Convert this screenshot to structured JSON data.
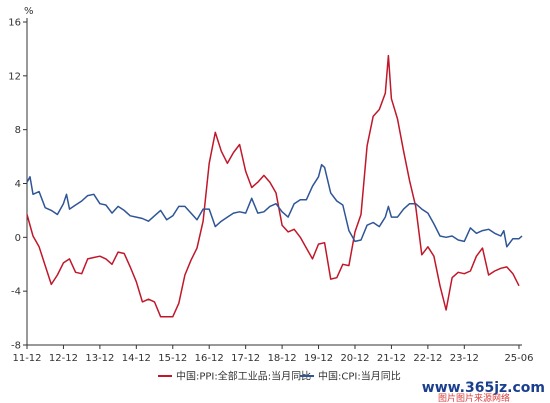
{
  "chart_data": {
    "type": "line",
    "y_unit": "%",
    "ylim": [
      -8,
      16
    ],
    "y_ticks": [
      "16",
      "12",
      "8",
      "4",
      "0",
      "-4",
      "-8"
    ],
    "xlim": [
      2011.917,
      2025.5
    ],
    "x_ticks": [
      {
        "label": "11-12",
        "t": 2011.917
      },
      {
        "label": "12-12",
        "t": 2012.917
      },
      {
        "label": "13-12",
        "t": 2013.917
      },
      {
        "label": "14-12",
        "t": 2014.917
      },
      {
        "label": "15-12",
        "t": 2015.917
      },
      {
        "label": "16-12",
        "t": 2016.917
      },
      {
        "label": "17-12",
        "t": 2017.917
      },
      {
        "label": "18-12",
        "t": 2018.917
      },
      {
        "label": "19-12",
        "t": 2019.917
      },
      {
        "label": "20-12",
        "t": 2020.917
      },
      {
        "label": "21-12",
        "t": 2021.917
      },
      {
        "label": "22-12",
        "t": 2022.917
      },
      {
        "label": "23-12",
        "t": 2023.917
      },
      {
        "label": "25-06",
        "t": 2025.417
      }
    ],
    "grid": false,
    "legend_position": "bottom",
    "series": [
      {
        "name": "中国:PPI:全部工业品:当月同比",
        "color": "#c0182a",
        "points": [
          [
            2011.917,
            1.7
          ],
          [
            2012.083,
            0.1
          ],
          [
            2012.25,
            -0.7
          ],
          [
            2012.417,
            -2.1
          ],
          [
            2012.583,
            -3.5
          ],
          [
            2012.75,
            -2.8
          ],
          [
            2012.917,
            -1.9
          ],
          [
            2013.083,
            -1.6
          ],
          [
            2013.25,
            -2.6
          ],
          [
            2013.417,
            -2.7
          ],
          [
            2013.583,
            -1.6
          ],
          [
            2013.75,
            -1.5
          ],
          [
            2013.917,
            -1.4
          ],
          [
            2014.083,
            -1.6
          ],
          [
            2014.25,
            -2.0
          ],
          [
            2014.417,
            -1.1
          ],
          [
            2014.583,
            -1.2
          ],
          [
            2014.75,
            -2.2
          ],
          [
            2014.917,
            -3.3
          ],
          [
            2015.083,
            -4.8
          ],
          [
            2015.25,
            -4.6
          ],
          [
            2015.417,
            -4.8
          ],
          [
            2015.583,
            -5.9
          ],
          [
            2015.75,
            -5.9
          ],
          [
            2015.917,
            -5.9
          ],
          [
            2016.083,
            -4.9
          ],
          [
            2016.25,
            -2.8
          ],
          [
            2016.417,
            -1.7
          ],
          [
            2016.583,
            -0.8
          ],
          [
            2016.75,
            1.2
          ],
          [
            2016.917,
            5.5
          ],
          [
            2017.083,
            7.8
          ],
          [
            2017.25,
            6.4
          ],
          [
            2017.417,
            5.5
          ],
          [
            2017.583,
            6.3
          ],
          [
            2017.75,
            6.9
          ],
          [
            2017.917,
            4.9
          ],
          [
            2018.083,
            3.7
          ],
          [
            2018.25,
            4.1
          ],
          [
            2018.417,
            4.6
          ],
          [
            2018.583,
            4.1
          ],
          [
            2018.75,
            3.3
          ],
          [
            2018.917,
            0.9
          ],
          [
            2019.083,
            0.4
          ],
          [
            2019.25,
            0.6
          ],
          [
            2019.417,
            0.0
          ],
          [
            2019.583,
            -0.8
          ],
          [
            2019.75,
            -1.6
          ],
          [
            2019.917,
            -0.5
          ],
          [
            2020.083,
            -0.4
          ],
          [
            2020.25,
            -3.1
          ],
          [
            2020.417,
            -3.0
          ],
          [
            2020.583,
            -2.0
          ],
          [
            2020.75,
            -2.1
          ],
          [
            2020.917,
            0.4
          ],
          [
            2021.083,
            1.7
          ],
          [
            2021.25,
            6.8
          ],
          [
            2021.417,
            9.0
          ],
          [
            2021.583,
            9.5
          ],
          [
            2021.75,
            10.7
          ],
          [
            2021.833,
            13.5
          ],
          [
            2021.917,
            10.3
          ],
          [
            2022.083,
            8.8
          ],
          [
            2022.25,
            6.4
          ],
          [
            2022.417,
            4.2
          ],
          [
            2022.583,
            2.3
          ],
          [
            2022.75,
            -1.3
          ],
          [
            2022.917,
            -0.7
          ],
          [
            2023.083,
            -1.4
          ],
          [
            2023.25,
            -3.6
          ],
          [
            2023.417,
            -5.4
          ],
          [
            2023.583,
            -3.0
          ],
          [
            2023.75,
            -2.6
          ],
          [
            2023.917,
            -2.7
          ],
          [
            2024.083,
            -2.5
          ],
          [
            2024.25,
            -1.4
          ],
          [
            2024.417,
            -0.8
          ],
          [
            2024.583,
            -2.8
          ],
          [
            2024.75,
            -2.5
          ],
          [
            2024.917,
            -2.3
          ],
          [
            2025.083,
            -2.2
          ],
          [
            2025.25,
            -2.7
          ],
          [
            2025.417,
            -3.6
          ]
        ]
      },
      {
        "name": "中国:CPI:当月同比",
        "color": "#2f5597",
        "points": [
          [
            2011.917,
            4.1
          ],
          [
            2012.0,
            4.5
          ],
          [
            2012.083,
            3.2
          ],
          [
            2012.25,
            3.4
          ],
          [
            2012.417,
            2.2
          ],
          [
            2012.583,
            2.0
          ],
          [
            2012.75,
            1.7
          ],
          [
            2012.917,
            2.5
          ],
          [
            2013.0,
            3.2
          ],
          [
            2013.083,
            2.1
          ],
          [
            2013.25,
            2.4
          ],
          [
            2013.417,
            2.7
          ],
          [
            2013.583,
            3.1
          ],
          [
            2013.75,
            3.2
          ],
          [
            2013.917,
            2.5
          ],
          [
            2014.083,
            2.4
          ],
          [
            2014.25,
            1.8
          ],
          [
            2014.417,
            2.3
          ],
          [
            2014.583,
            2.0
          ],
          [
            2014.75,
            1.6
          ],
          [
            2014.917,
            1.5
          ],
          [
            2015.083,
            1.4
          ],
          [
            2015.25,
            1.2
          ],
          [
            2015.417,
            1.6
          ],
          [
            2015.583,
            2.0
          ],
          [
            2015.75,
            1.3
          ],
          [
            2015.917,
            1.6
          ],
          [
            2016.083,
            2.3
          ],
          [
            2016.25,
            2.3
          ],
          [
            2016.417,
            1.8
          ],
          [
            2016.583,
            1.3
          ],
          [
            2016.75,
            2.1
          ],
          [
            2016.917,
            2.1
          ],
          [
            2017.083,
            0.8
          ],
          [
            2017.25,
            1.2
          ],
          [
            2017.417,
            1.5
          ],
          [
            2017.583,
            1.8
          ],
          [
            2017.75,
            1.9
          ],
          [
            2017.917,
            1.8
          ],
          [
            2018.083,
            2.9
          ],
          [
            2018.25,
            1.8
          ],
          [
            2018.417,
            1.9
          ],
          [
            2018.583,
            2.3
          ],
          [
            2018.75,
            2.5
          ],
          [
            2018.917,
            1.9
          ],
          [
            2019.083,
            1.5
          ],
          [
            2019.25,
            2.5
          ],
          [
            2019.417,
            2.8
          ],
          [
            2019.583,
            2.8
          ],
          [
            2019.75,
            3.8
          ],
          [
            2019.917,
            4.5
          ],
          [
            2020.0,
            5.4
          ],
          [
            2020.083,
            5.2
          ],
          [
            2020.25,
            3.3
          ],
          [
            2020.417,
            2.7
          ],
          [
            2020.583,
            2.4
          ],
          [
            2020.75,
            0.5
          ],
          [
            2020.917,
            -0.3
          ],
          [
            2021.083,
            -0.2
          ],
          [
            2021.25,
            0.9
          ],
          [
            2021.417,
            1.1
          ],
          [
            2021.583,
            0.8
          ],
          [
            2021.75,
            1.5
          ],
          [
            2021.833,
            2.3
          ],
          [
            2021.917,
            1.5
          ],
          [
            2022.083,
            1.5
          ],
          [
            2022.25,
            2.1
          ],
          [
            2022.417,
            2.5
          ],
          [
            2022.583,
            2.5
          ],
          [
            2022.75,
            2.1
          ],
          [
            2022.917,
            1.8
          ],
          [
            2023.083,
            1.0
          ],
          [
            2023.25,
            0.1
          ],
          [
            2023.417,
            0.0
          ],
          [
            2023.583,
            0.1
          ],
          [
            2023.75,
            -0.2
          ],
          [
            2023.917,
            -0.3
          ],
          [
            2024.083,
            0.7
          ],
          [
            2024.25,
            0.3
          ],
          [
            2024.417,
            0.5
          ],
          [
            2024.583,
            0.6
          ],
          [
            2024.75,
            0.3
          ],
          [
            2024.917,
            0.1
          ],
          [
            2025.0,
            0.5
          ],
          [
            2025.083,
            -0.7
          ],
          [
            2025.25,
            -0.1
          ],
          [
            2025.417,
            -0.1
          ],
          [
            2025.5,
            0.1
          ]
        ]
      }
    ]
  },
  "watermark": {
    "text": "www.365jz.com",
    "sub": "图片图片来源网络"
  }
}
